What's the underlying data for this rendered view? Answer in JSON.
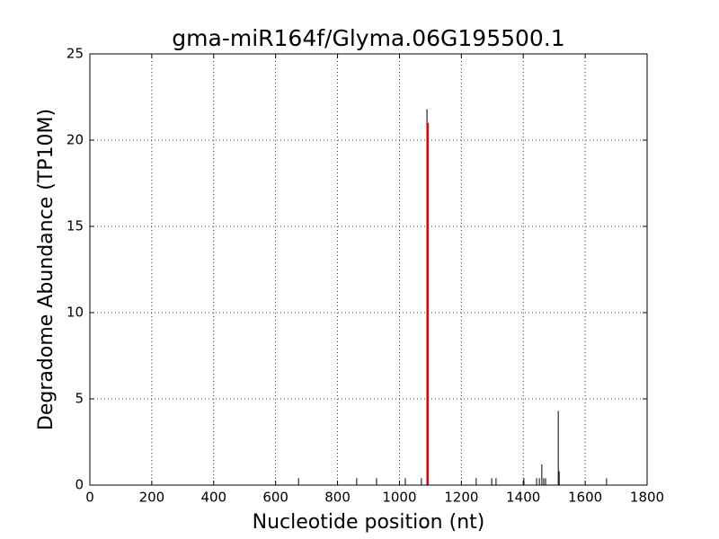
{
  "chart_data": {
    "type": "stem",
    "title": "gma-miR164f/Glyma.06G195500.1",
    "x_label": "Nucleotide position (nt)",
    "y_label": "Degradome Abundance (TP10M)",
    "xlim": [
      0,
      1800
    ],
    "xticks": [
      0,
      200,
      400,
      600,
      800,
      1000,
      1200,
      1400,
      1600,
      1800
    ],
    "ylim": [
      0,
      25
    ],
    "yticks": [
      0,
      5,
      10,
      15,
      20,
      25
    ],
    "grid": true,
    "series": [
      {
        "color": "#000000",
        "x": [
          674,
          862,
          926,
          1019,
          1071,
          1089,
          1248,
          1298,
          1312,
          1402,
          1443,
          1452,
          1460,
          1466,
          1472,
          1513,
          1516,
          1669
        ],
        "values": [
          0.4,
          0.4,
          0.4,
          0.4,
          0.4,
          21.8,
          0.4,
          0.4,
          0.4,
          0.4,
          0.4,
          0.4,
          1.2,
          0.4,
          0.4,
          4.3,
          0.8,
          0.4
        ]
      },
      {
        "color": "#ff0000",
        "x": [
          1092
        ],
        "values": [
          21
        ]
      }
    ]
  }
}
